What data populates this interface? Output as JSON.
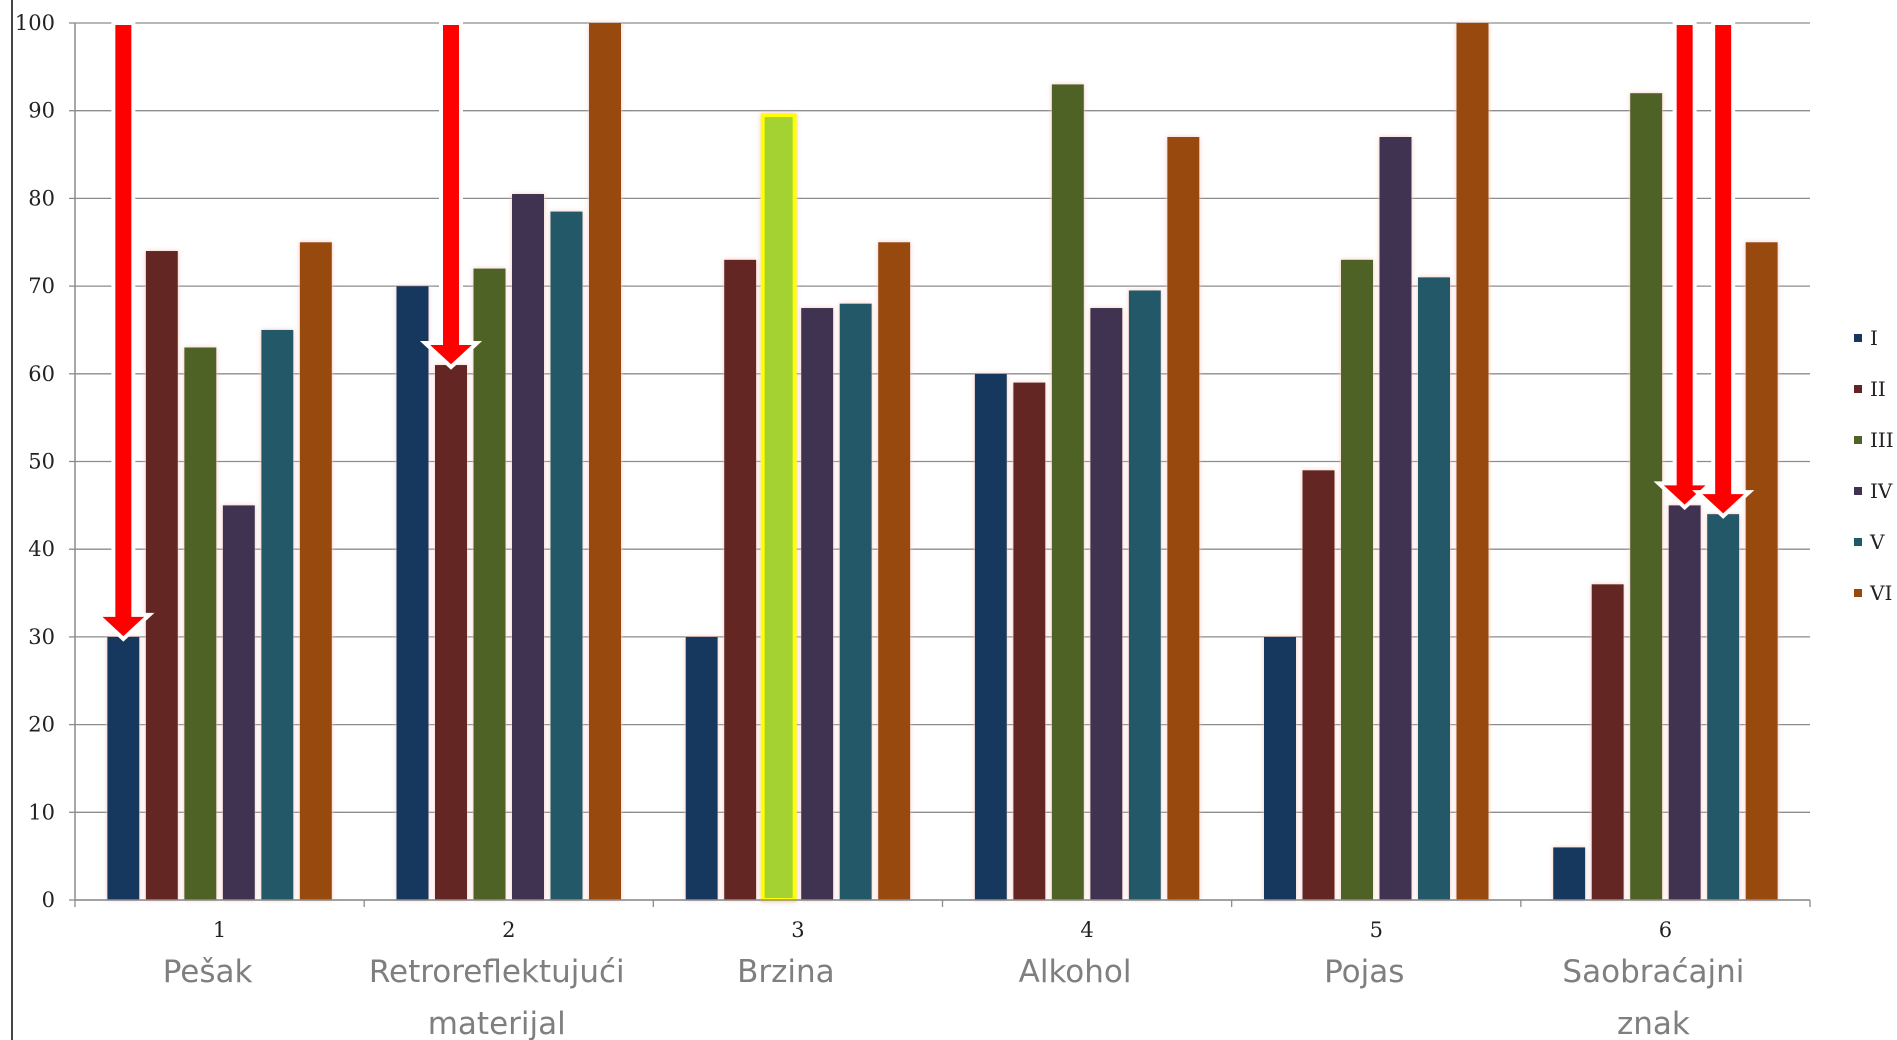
{
  "chart_data": {
    "type": "bar",
    "categories": [
      "1",
      "2",
      "3",
      "4",
      "5",
      "6"
    ],
    "category_names": [
      [
        "Pešak"
      ],
      [
        "Retroreflektujući",
        "materijal"
      ],
      [
        "Brzina"
      ],
      [
        "Alkohol"
      ],
      [
        "Pojas"
      ],
      [
        "Saobraćajni",
        "znak"
      ]
    ],
    "series": [
      {
        "name": "I",
        "color": "#17375e",
        "values": [
          30,
          70,
          30,
          60,
          30,
          6
        ]
      },
      {
        "name": "II",
        "color": "#632523",
        "values": [
          74,
          61,
          73,
          59,
          49,
          36
        ]
      },
      {
        "name": "III",
        "color": "#4f6228",
        "values": [
          63,
          72,
          89.5,
          93,
          73,
          92
        ]
      },
      {
        "name": "IV",
        "color": "#3f3151",
        "values": [
          45,
          80.5,
          67.5,
          67.5,
          87,
          45
        ]
      },
      {
        "name": "V",
        "color": "#215967",
        "values": [
          65,
          78.5,
          68,
          69.5,
          71,
          44
        ]
      },
      {
        "name": "VI",
        "color": "#984807",
        "values": [
          75,
          100,
          75,
          87,
          100,
          75
        ]
      }
    ],
    "ylim": [
      0,
      100
    ],
    "yticks": [
      "0",
      "10",
      "20",
      "30",
      "40",
      "50",
      "60",
      "70",
      "80",
      "90",
      "100"
    ],
    "grid": true,
    "legend_position": "right",
    "highlight": {
      "category": "3",
      "series": "III",
      "fill": "#a4d233",
      "stroke": "#ffff00"
    },
    "annotations": [
      {
        "type": "arrow",
        "color": "#ff0000",
        "category": "1",
        "series": "I",
        "points_to_value": 30
      },
      {
        "type": "arrow",
        "color": "#ff0000",
        "category": "2",
        "series": "II",
        "points_to_value": 61
      },
      {
        "type": "arrow",
        "color": "#ff0000",
        "category": "6",
        "series": "IV",
        "points_to_value": 45
      },
      {
        "type": "arrow",
        "color": "#ff0000",
        "category": "6",
        "series": "V",
        "points_to_value": 44
      }
    ]
  }
}
